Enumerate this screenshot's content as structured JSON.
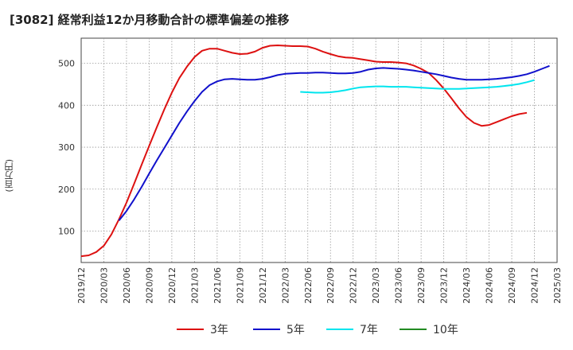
{
  "chart_data": {
    "type": "line",
    "title": "[3082]  経常利益12か月移動合計の標準偏差の推移",
    "ylabel": "(百万円)",
    "xlabel": "",
    "ylim": [
      25,
      560
    ],
    "yticks": [
      100,
      200,
      300,
      400,
      500
    ],
    "x_tick_labels": [
      "2019/12",
      "2020/03",
      "2020/06",
      "2020/09",
      "2020/12",
      "2021/03",
      "2021/06",
      "2021/09",
      "2021/12",
      "2022/03",
      "2022/06",
      "2022/09",
      "2022/12",
      "2023/03",
      "2023/06",
      "2023/09",
      "2023/12",
      "2024/03",
      "2024/06",
      "2024/09",
      "2024/12",
      "2025/03"
    ],
    "grid": true,
    "legend_position": "bottom",
    "series": [
      {
        "name": "3年",
        "color": "#dd1111",
        "start": "2019/12",
        "values": [
          40,
          42,
          50,
          65,
          92,
          128,
          168,
          212,
          258,
          303,
          347,
          390,
          430,
          465,
          492,
          515,
          530,
          535,
          535,
          530,
          525,
          522,
          523,
          528,
          537,
          542,
          543,
          542,
          541,
          541,
          540,
          535,
          528,
          522,
          517,
          514,
          513,
          510,
          507,
          504,
          503,
          503,
          502,
          500,
          495,
          487,
          477,
          460,
          440,
          417,
          393,
          372,
          358,
          351,
          353,
          360,
          367,
          374,
          379,
          382
        ]
      },
      {
        "name": "5年",
        "color": "#1111cc",
        "start": "2020/05",
        "values": [
          125,
          148,
          175,
          205,
          237,
          268,
          298,
          328,
          358,
          385,
          410,
          432,
          448,
          457,
          462,
          463,
          462,
          461,
          461,
          463,
          467,
          472,
          475,
          476,
          477,
          477,
          478,
          478,
          477,
          476,
          476,
          477,
          480,
          485,
          488,
          489,
          488,
          487,
          485,
          483,
          480,
          477,
          474,
          470,
          466,
          463,
          461,
          461,
          461,
          462,
          463,
          465,
          467,
          470,
          474,
          480,
          487,
          494
        ]
      },
      {
        "name": "7年",
        "color": "#00e5ee",
        "start": "2022/05",
        "values": [
          432,
          431,
          430,
          430,
          431,
          433,
          436,
          440,
          443,
          444,
          445,
          445,
          444,
          444,
          444,
          443,
          442,
          441,
          440,
          439,
          439,
          439,
          440,
          441,
          442,
          443,
          444,
          446,
          448,
          451,
          455,
          460
        ]
      },
      {
        "name": "10年",
        "color": "#228b22",
        "start": "",
        "values": []
      }
    ]
  }
}
